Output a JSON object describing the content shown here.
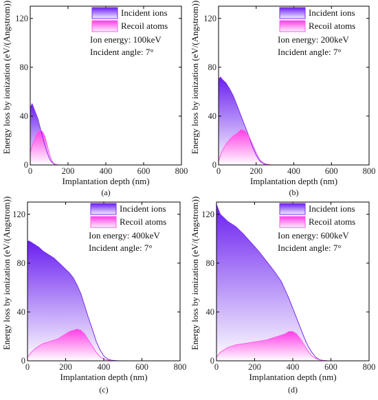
{
  "chart_data": [
    {
      "type": "area",
      "panel_label": "(a)",
      "xlabel": "Implantation depth (nm)",
      "ylabel": "Energy loss by ionization (eV/(Angstrom))",
      "xlim": [
        0,
        800
      ],
      "ylim": [
        0,
        130
      ],
      "xticks": [
        "0",
        "200",
        "400",
        "600",
        "800"
      ],
      "yticks": [
        "0",
        "40",
        "80",
        "120"
      ],
      "annotations": [
        "Ion energy: 100keV",
        "Incident angle: 7°"
      ],
      "legend_position": "top-right",
      "series": [
        {
          "name": "Incident ions",
          "color": "#7a2cf0",
          "x": [
            0,
            10,
            20,
            30,
            40,
            50,
            60,
            70,
            80,
            90,
            100,
            110,
            120,
            130,
            140,
            150,
            170,
            800
          ],
          "values": [
            47,
            50,
            46,
            42,
            38,
            32,
            26,
            20,
            15,
            10,
            6,
            3,
            1.5,
            0.5,
            0.2,
            0,
            0,
            0
          ]
        },
        {
          "name": "Recoil atoms",
          "color": "#ff5ae8",
          "x": [
            0,
            10,
            20,
            30,
            40,
            50,
            60,
            70,
            80,
            90,
            100,
            110,
            120,
            130,
            140,
            150,
            170,
            800
          ],
          "values": [
            10,
            16,
            20,
            24,
            27,
            28,
            28,
            26,
            22,
            16,
            10,
            5,
            2,
            0.8,
            0.3,
            0,
            0,
            0
          ]
        }
      ]
    },
    {
      "type": "area",
      "panel_label": "(b)",
      "xlabel": "Implantation depth (nm)",
      "ylabel": "Energy loss by ionization (eV/(Angstrom))",
      "xlim": [
        0,
        800
      ],
      "ylim": [
        0,
        130
      ],
      "xticks": [
        "0",
        "200",
        "400",
        "600",
        "800"
      ],
      "yticks": [
        "0",
        "40",
        "80",
        "120"
      ],
      "annotations": [
        "Ion energy: 200keV",
        "Incident angle: 7°"
      ],
      "legend_position": "top-right",
      "series": [
        {
          "name": "Incident ions",
          "color": "#7a2cf0",
          "x": [
            0,
            10,
            20,
            40,
            60,
            80,
            100,
            120,
            140,
            160,
            180,
            200,
            220,
            240,
            260,
            280,
            300,
            800
          ],
          "values": [
            70,
            72,
            70,
            67,
            62,
            56,
            48,
            40,
            32,
            24,
            15,
            8,
            3,
            1,
            0.3,
            0,
            0,
            0
          ]
        },
        {
          "name": "Recoil atoms",
          "color": "#ff5ae8",
          "x": [
            0,
            10,
            20,
            40,
            60,
            80,
            100,
            120,
            140,
            160,
            180,
            200,
            220,
            240,
            260,
            280,
            300,
            800
          ],
          "values": [
            3,
            8,
            12,
            17,
            21,
            24,
            26,
            29,
            28,
            24,
            17,
            10,
            4,
            1.5,
            0.4,
            0,
            0,
            0
          ]
        }
      ]
    },
    {
      "type": "area",
      "panel_label": "(c)",
      "xlabel": "Implantation depth (nm)",
      "ylabel": "Energy loss by ionization (eV/(Angstrom))",
      "xlim": [
        0,
        800
      ],
      "ylim": [
        0,
        130
      ],
      "xticks": [
        "0",
        "200",
        "400",
        "600",
        "800"
      ],
      "yticks": [
        "0",
        "40",
        "80",
        "120"
      ],
      "annotations": [
        "Ion energy: 400keV",
        "Incident angle: 7°"
      ],
      "legend_position": "top-right",
      "series": [
        {
          "name": "Incident ions",
          "color": "#7a2cf0",
          "x": [
            0,
            10,
            20,
            40,
            60,
            80,
            100,
            120,
            140,
            160,
            180,
            200,
            220,
            240,
            260,
            280,
            300,
            320,
            340,
            360,
            380,
            400,
            420,
            440,
            460,
            480,
            500,
            800
          ],
          "values": [
            98,
            98,
            97,
            95,
            93,
            90,
            88,
            86,
            84,
            81,
            78,
            75,
            72,
            68,
            62,
            55,
            45,
            35,
            26,
            16,
            9,
            4,
            1.5,
            0.5,
            0.2,
            0,
            0,
            0
          ]
        },
        {
          "name": "Recoil atoms",
          "color": "#ff5ae8",
          "x": [
            0,
            10,
            20,
            40,
            60,
            80,
            100,
            120,
            140,
            160,
            180,
            200,
            220,
            240,
            260,
            280,
            300,
            320,
            340,
            360,
            380,
            400,
            420,
            440,
            460,
            480,
            500,
            800
          ],
          "values": [
            3,
            5,
            7,
            10,
            12,
            14,
            15,
            16,
            17,
            18,
            20,
            22,
            24,
            25,
            26,
            25,
            22,
            17,
            12,
            7,
            3.5,
            1.5,
            0.6,
            0.2,
            0,
            0,
            0,
            0
          ]
        }
      ]
    },
    {
      "type": "area",
      "panel_label": "(d)",
      "xlabel": "Implantation depth (nm)",
      "ylabel": "Energy loss by ionization (eV/(Angstrom))",
      "xlim": [
        0,
        800
      ],
      "ylim": [
        0,
        130
      ],
      "xticks": [
        "0",
        "200",
        "400",
        "600",
        "800"
      ],
      "yticks": [
        "0",
        "40",
        "80",
        "120"
      ],
      "annotations": [
        "Ion energy: 600keV",
        "Incident angle: 7°"
      ],
      "legend_position": "top-right",
      "series": [
        {
          "name": "Incident ions",
          "color": "#7a2cf0",
          "x": [
            0,
            10,
            20,
            40,
            60,
            80,
            100,
            140,
            180,
            220,
            260,
            300,
            340,
            360,
            380,
            400,
            420,
            440,
            460,
            480,
            500,
            520,
            540,
            560,
            580,
            600,
            800
          ],
          "values": [
            128,
            124,
            120,
            117,
            114,
            112,
            110,
            104,
            97,
            90,
            82,
            74,
            65,
            58,
            51,
            43,
            35,
            27,
            19,
            12,
            7,
            3,
            1,
            0.3,
            0.1,
            0,
            0
          ]
        },
        {
          "name": "Recoil atoms",
          "color": "#ff5ae8",
          "x": [
            0,
            10,
            20,
            40,
            60,
            80,
            100,
            140,
            180,
            220,
            260,
            300,
            340,
            360,
            380,
            400,
            420,
            440,
            460,
            480,
            500,
            520,
            540,
            560,
            580,
            600,
            800
          ],
          "values": [
            3,
            5,
            7,
            9,
            11,
            12,
            13,
            14,
            15,
            16,
            17,
            19,
            21,
            22,
            24,
            24,
            22,
            18,
            13,
            8,
            4,
            2,
            0.8,
            0.3,
            0.1,
            0,
            0
          ]
        }
      ]
    }
  ]
}
